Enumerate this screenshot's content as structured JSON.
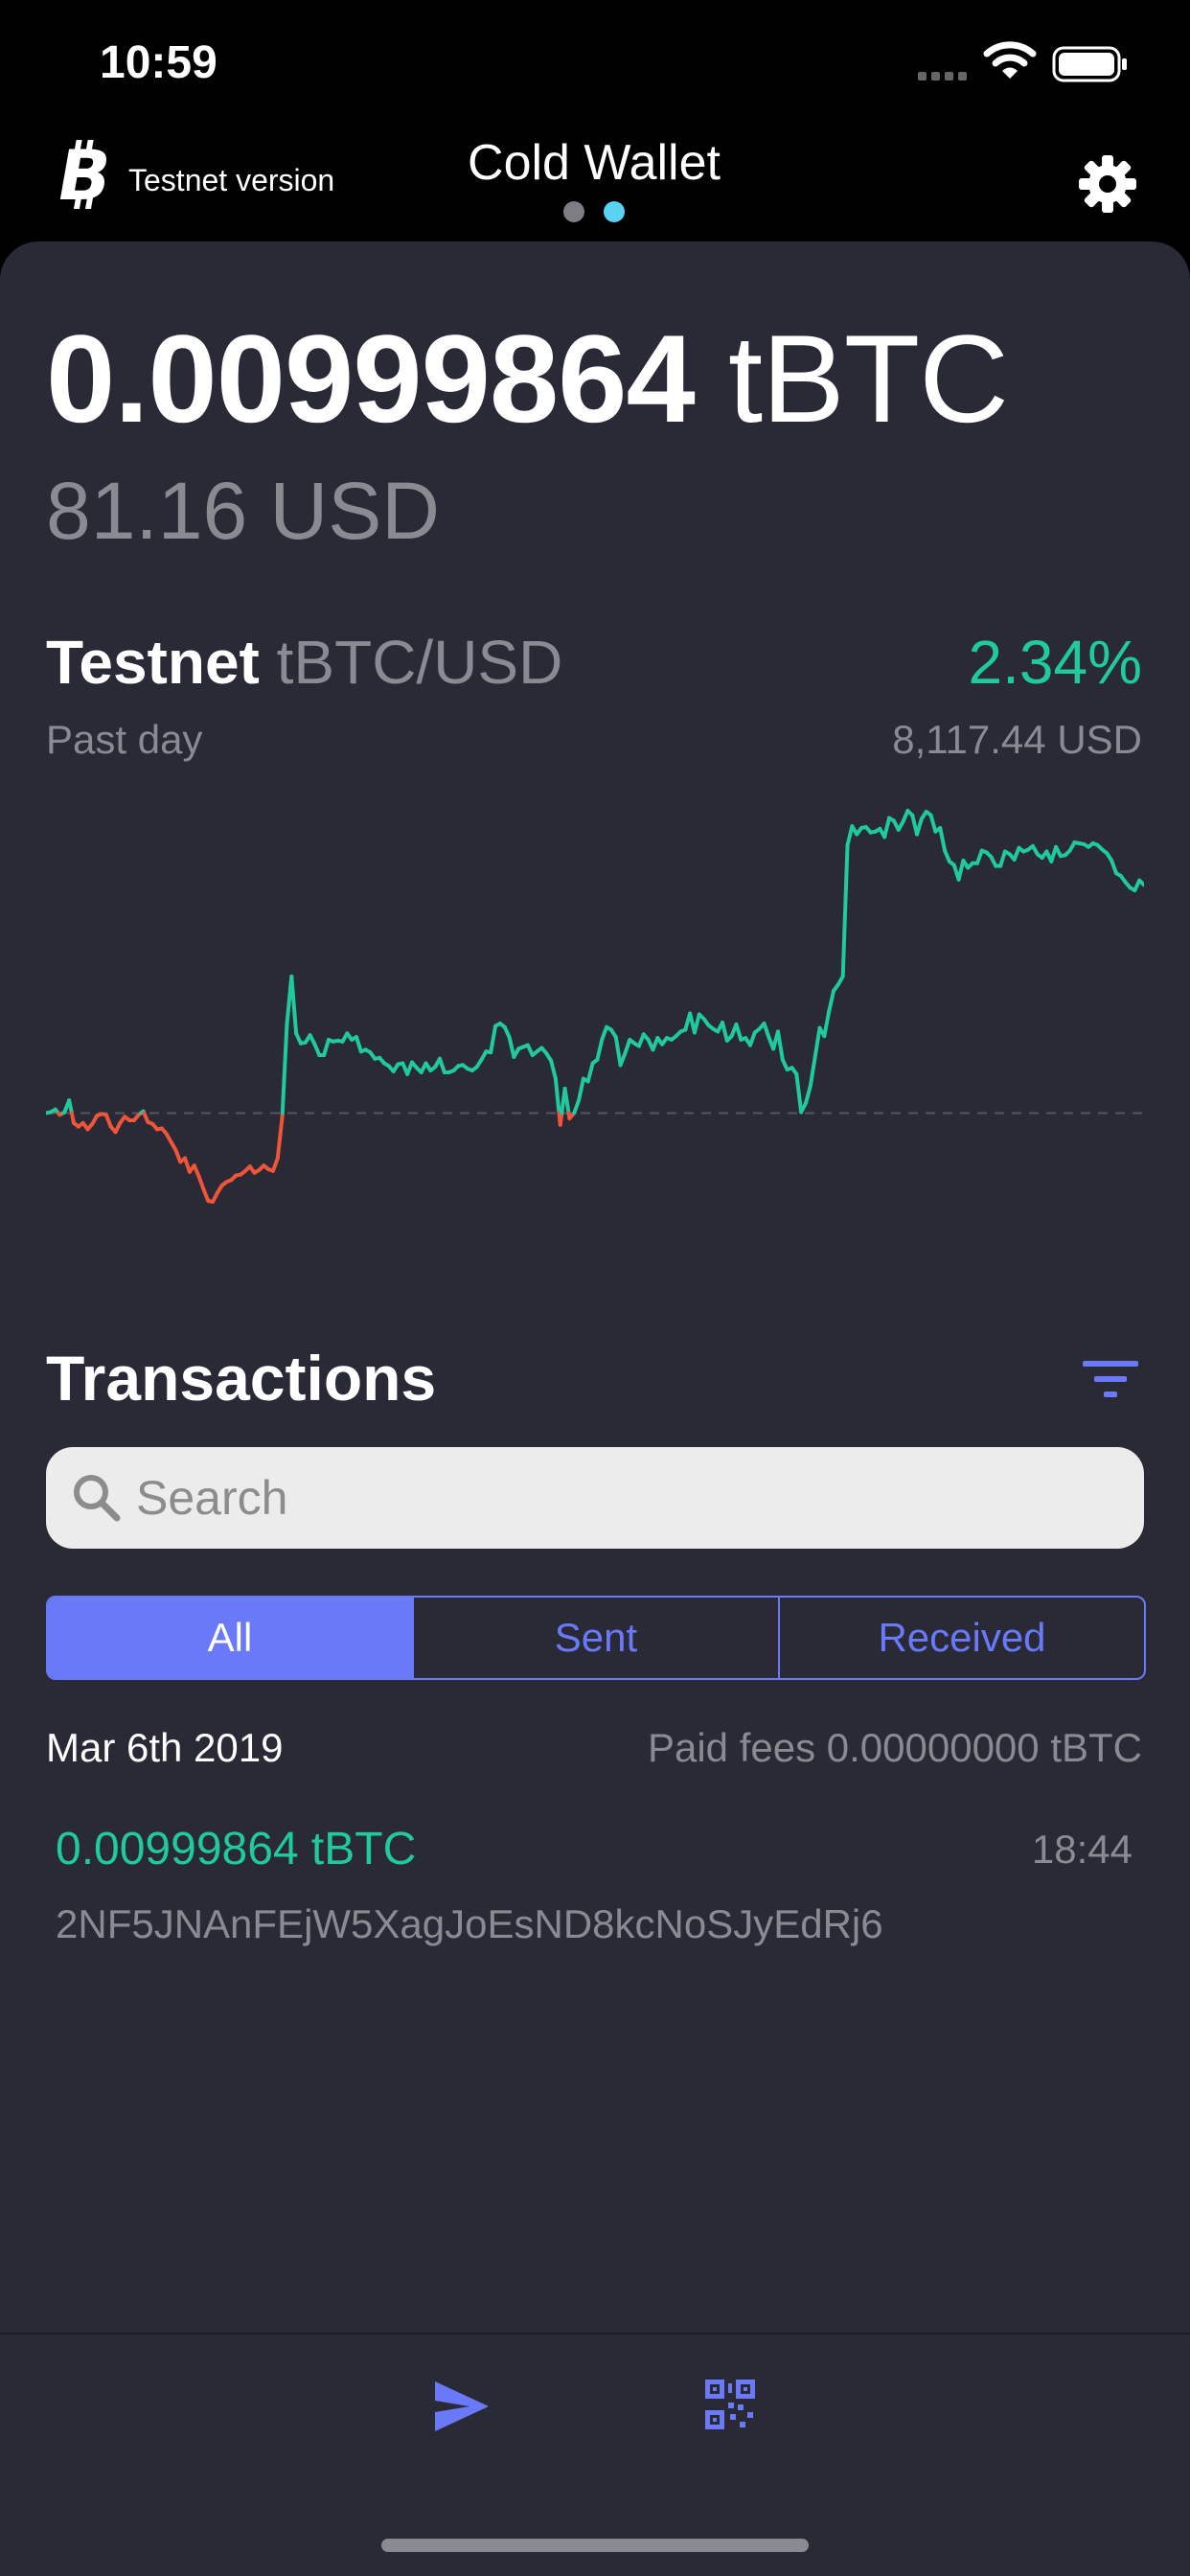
{
  "status_bar": {
    "time": "10:59"
  },
  "header": {
    "network_label": "Testnet version",
    "title": "Cold Wallet",
    "pages": 2,
    "active_page": 2,
    "icons": [
      "bitcoin-logo-icon",
      "gear-icon"
    ]
  },
  "balance": {
    "amount": "0.00999864",
    "unit": "tBTC",
    "fiat": "81.16 USD"
  },
  "market": {
    "network": "Testnet",
    "pair": "tBTC/USD",
    "change": "2.34%",
    "period": "Past day",
    "price": "8,117.44 USD"
  },
  "chart_data": {
    "type": "line",
    "baseline_index": 0,
    "colors": {
      "up": "#20c99e",
      "down": "#f0553a",
      "baseline": "#55555f"
    },
    "values": [
      7932,
      7933,
      7936,
      7930,
      7933,
      7946,
      7921,
      7917,
      7921,
      7914,
      7920,
      7929,
      7931,
      7930,
      7917,
      7911,
      7921,
      7928,
      7924,
      7924,
      7930,
      7934,
      7922,
      7920,
      7914,
      7915,
      7909,
      7900,
      7891,
      7878,
      7882,
      7867,
      7874,
      7862,
      7848,
      7835,
      7834,
      7844,
      7852,
      7856,
      7858,
      7863,
      7864,
      7868,
      7873,
      7866,
      7869,
      7874,
      7870,
      7868,
      7882,
      7928,
      8030,
      8083,
      8020,
      8009,
      8010,
      8018,
      8008,
      7996,
      7996,
      8013,
      8011,
      8012,
      8011,
      8020,
      8013,
      8016,
      8000,
      8002,
      7999,
      7992,
      7993,
      7987,
      7984,
      7978,
      7986,
      7987,
      7975,
      7988,
      7982,
      7977,
      7987,
      7979,
      7983,
      7992,
      7977,
      7977,
      7979,
      7984,
      7985,
      7981,
      7979,
      7983,
      7991,
      8000,
      7999,
      8028,
      8031,
      8027,
      8016,
      7994,
      8003,
      8005,
      8007,
      7996,
      8000,
      8004,
      7998,
      7990,
      7970,
      7919,
      7959,
      7926,
      7932,
      7946,
      7970,
      7967,
      7987,
      7991,
      8013,
      8027,
      8024,
      8016,
      7985,
      7998,
      8013,
      8009,
      8006,
      8019,
      8013,
      8002,
      8015,
      8008,
      8015,
      8013,
      8017,
      8022,
      8024,
      8042,
      8021,
      8041,
      8036,
      8029,
      8025,
      8022,
      8032,
      8012,
      8017,
      8030,
      8013,
      8015,
      8007,
      8021,
      8025,
      8031,
      8016,
      8003,
      8022,
      7991,
      7980,
      7982,
      7975,
      7933,
      7943,
      7962,
      7994,
      8026,
      8017,
      8044,
      8067,
      8074,
      8083,
      8228,
      8249,
      8240,
      8247,
      8248,
      8242,
      8243,
      8246,
      8237,
      8258,
      8255,
      8245,
      8254,
      8266,
      8261,
      8240,
      8257,
      8265,
      8261,
      8243,
      8247,
      8222,
      8210,
      8206,
      8190,
      8211,
      8203,
      8208,
      8208,
      8222,
      8220,
      8215,
      8205,
      8205,
      8221,
      8218,
      8212,
      8225,
      8221,
      8223,
      8227,
      8218,
      8214,
      8221,
      8210,
      8226,
      8216,
      8217,
      8222,
      8231,
      8230,
      8229,
      8226,
      8230,
      8228,
      8223,
      8219,
      8211,
      8197,
      8194,
      8187,
      8181,
      8178,
      8189,
      8184
    ]
  },
  "transactions": {
    "title": "Transactions",
    "search_placeholder": "Search",
    "filters": [
      "All",
      "Sent",
      "Received"
    ],
    "active_filter": "All",
    "groups": [
      {
        "date": "Mar 6th 2019",
        "fees": "Paid fees 0.00000000 tBTC",
        "items": [
          {
            "amount": "0.00999864 tBTC",
            "time": "18:44",
            "address": "2NF5JNAnFEjW5XagJoEsND8kcNoSJyEdRj6"
          }
        ]
      }
    ]
  },
  "bottom_bar": {
    "icons": [
      "send-icon",
      "qr-code-icon"
    ]
  }
}
